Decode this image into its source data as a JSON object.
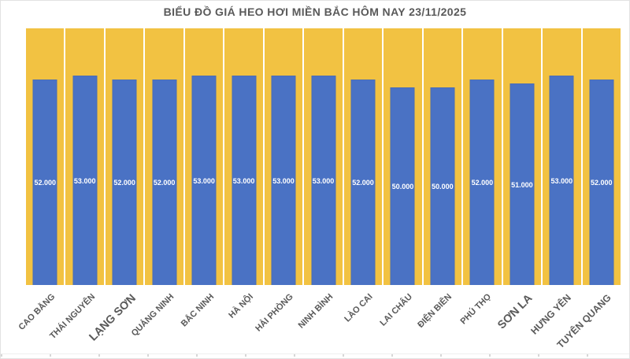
{
  "title": "BIỂU ĐỒ GIÁ HEO HƠI MIỀN BẮC HÔM NAY 23/11/2025",
  "colors": {
    "bar_fill": "#4A72C4",
    "background_column_fill": "#F2C242",
    "column_gap": "#FFFFFF",
    "title_text": "#595959",
    "axis_label_text": "#595959",
    "value_label_text": "#FFFFFF",
    "chart_border": "#E2E2E2",
    "axis_tick": "#D7D7D7"
  },
  "chart_data": {
    "type": "bar",
    "title": "BIỂU ĐỒ GIÁ HEO HƠI MIỀN BẮC HÔM NAY 23/11/2025",
    "categories": [
      "CAO BẰNG",
      "THÁI NGUYÊN",
      "LẠNG SƠN",
      "QUẢNG NINH",
      "BẮC NINH",
      "HÀ NỘI",
      "HẢI PHÒNG",
      "NINH BÌNH",
      "LÀO CAI",
      "LAI CHÂU",
      "ĐIỆN BIÊN",
      "PHÚ THỌ",
      "SƠN LA",
      "HƯNG YÊN",
      "TUYÊN QUANG"
    ],
    "values": [
      52000,
      53000,
      52000,
      52000,
      53000,
      53000,
      53000,
      53000,
      52000,
      50000,
      50000,
      52000,
      51000,
      53000,
      52000
    ],
    "value_labels": [
      "52.000",
      "53.000",
      "52.000",
      "52.000",
      "53.000",
      "53.000",
      "53.000",
      "53.000",
      "52.000",
      "50.000",
      "50.000",
      "52.000",
      "51.000",
      "53.000",
      "52.000"
    ],
    "xlabel": "",
    "ylabel": "",
    "ylim": [
      0,
      65000
    ],
    "grid": false,
    "legend": false,
    "value_label_position": "center",
    "background_columns_full_height": true,
    "label_font_scale": [
      1,
      1,
      1.3,
      1,
      1,
      1,
      1,
      1,
      1,
      1,
      1,
      1,
      1.3,
      1.12,
      1.12
    ]
  }
}
